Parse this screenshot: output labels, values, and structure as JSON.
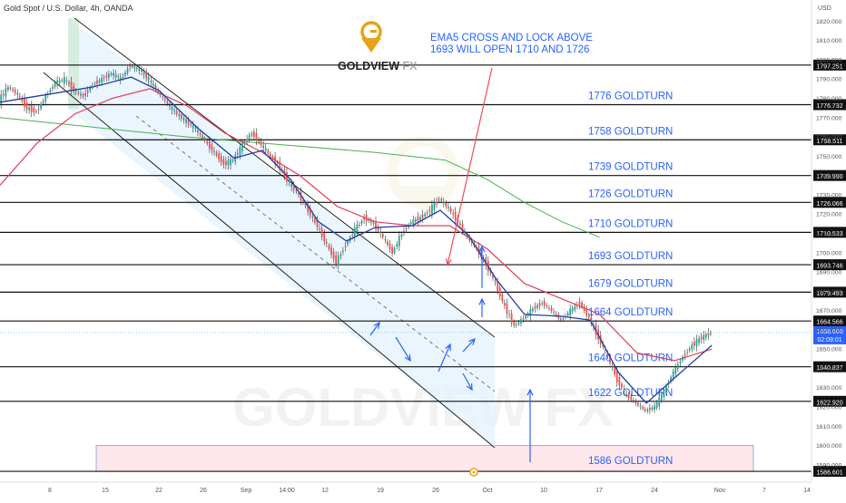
{
  "header": {
    "symbol": "Gold Spot / U.S. Dollar, 4h, OANDA",
    "currency": "USD"
  },
  "logo": {
    "text_main": "GOLDVIEW",
    "text_accent": "FX",
    "watermark": "GOLDVIEW FX"
  },
  "annotation": {
    "line1": "EMA5 CROSS AND LOCK ABOVE",
    "line2": "1693 WILL OPEN 1710 AND 1726"
  },
  "colors": {
    "bull": "#26a69a",
    "bear": "#ef5350",
    "ema_fast": "#1e3ea8",
    "ema_mid": "#e0405a",
    "ema_slow": "#4caf50",
    "label_blue": "#2962ff",
    "arrow_red": "#ef4b5a",
    "channel_fill": "#e3f2fd",
    "demand_zone": "#fde7ea"
  },
  "chart_data": {
    "type": "candlestick",
    "instrument": "Gold Spot / U.S. Dollar",
    "timeframe": "4h",
    "source": "OANDA",
    "ylim": [
      1581,
      1831
    ],
    "y_ticks": [
      1590,
      1600,
      1610,
      1620,
      1630,
      1640,
      1650,
      1660,
      1670,
      1680,
      1690,
      1700,
      1710,
      1720,
      1730,
      1740,
      1750,
      1760,
      1770,
      1780,
      1790,
      1800,
      1810,
      1820
    ],
    "x_ticks": [
      "8",
      "15",
      "22",
      "26",
      "Sep",
      "14:00",
      "12",
      "19",
      "26",
      "Oct",
      "10",
      "17",
      "24",
      "Nov",
      "7",
      "14"
    ],
    "levels": [
      {
        "price": 1797.251,
        "label": "1797.251"
      },
      {
        "price": 1776.732,
        "label": "1776.732",
        "goldturn": "1776 GOLDTURN"
      },
      {
        "price": 1758.511,
        "label": "1758.511",
        "goldturn": "1758 GOLDTURN"
      },
      {
        "price": 1739.99,
        "label": "1739.990",
        "goldturn": "1739 GOLDTURN"
      },
      {
        "price": 1726.066,
        "label": "1726.066",
        "goldturn": "1726 GOLDTURN"
      },
      {
        "price": 1710.533,
        "label": "1710.533",
        "goldturn": "1710 GOLDTURN"
      },
      {
        "price": 1693.746,
        "label": "1693.746",
        "goldturn": "1693 GOLDTURN"
      },
      {
        "price": 1679.493,
        "label": "1679.493",
        "goldturn": "1679 GOLDTURN"
      },
      {
        "price": 1664.566,
        "label": "1664.566",
        "goldturn": "1664 GOLDTURN"
      },
      {
        "price": 1640.837,
        "label": "1640.837",
        "goldturn": "1640 GOLDTURN"
      },
      {
        "price": 1622.92,
        "label": "1622.920",
        "goldturn": "1622 GOLDTURN"
      },
      {
        "price": 1586.601,
        "label": "1586.601",
        "goldturn": "1586 GOLDTURN"
      }
    ],
    "current_price": {
      "price": 1658.6,
      "label": "1658.600",
      "countdown": "02:09:01"
    },
    "demand_zone": {
      "low": 1586.601,
      "high": 1600
    },
    "price_path": [
      [
        0,
        1779
      ],
      [
        4,
        1786
      ],
      [
        8,
        1782
      ],
      [
        12,
        1775
      ],
      [
        16,
        1773
      ],
      [
        20,
        1781
      ],
      [
        24,
        1788
      ],
      [
        28,
        1790
      ],
      [
        32,
        1784
      ],
      [
        36,
        1781
      ],
      [
        40,
        1787
      ],
      [
        44,
        1790
      ],
      [
        48,
        1793
      ],
      [
        52,
        1790
      ],
      [
        56,
        1797
      ],
      [
        60,
        1795
      ],
      [
        64,
        1790
      ],
      [
        68,
        1783
      ],
      [
        72,
        1777
      ],
      [
        76,
        1772
      ],
      [
        80,
        1768
      ],
      [
        84,
        1764
      ],
      [
        88,
        1758
      ],
      [
        92,
        1752
      ],
      [
        96,
        1746
      ],
      [
        100,
        1748
      ],
      [
        104,
        1756
      ],
      [
        108,
        1762
      ],
      [
        112,
        1756
      ],
      [
        116,
        1750
      ],
      [
        120,
        1744
      ],
      [
        124,
        1736
      ],
      [
        128,
        1730
      ],
      [
        132,
        1722
      ],
      [
        136,
        1714
      ],
      [
        140,
        1704
      ],
      [
        144,
        1695
      ],
      [
        148,
        1704
      ],
      [
        152,
        1712
      ],
      [
        156,
        1718
      ],
      [
        160,
        1715
      ],
      [
        164,
        1708
      ],
      [
        168,
        1700
      ],
      [
        172,
        1710
      ],
      [
        176,
        1716
      ],
      [
        180,
        1718
      ],
      [
        184,
        1722
      ],
      [
        188,
        1728
      ],
      [
        192,
        1723
      ],
      [
        196,
        1716
      ],
      [
        200,
        1708
      ],
      [
        204,
        1702
      ],
      [
        208,
        1694
      ],
      [
        212,
        1684
      ],
      [
        216,
        1672
      ],
      [
        220,
        1662
      ],
      [
        224,
        1666
      ],
      [
        228,
        1671
      ],
      [
        232,
        1674
      ],
      [
        236,
        1670
      ],
      [
        240,
        1665
      ],
      [
        244,
        1670
      ],
      [
        248,
        1674
      ],
      [
        252,
        1666
      ],
      [
        256,
        1656
      ],
      [
        260,
        1646
      ],
      [
        264,
        1634
      ],
      [
        268,
        1626
      ],
      [
        272,
        1622
      ],
      [
        276,
        1618
      ],
      [
        280,
        1620
      ],
      [
        284,
        1628
      ],
      [
        288,
        1638
      ],
      [
        292,
        1646
      ],
      [
        296,
        1652
      ],
      [
        300,
        1656
      ],
      [
        304,
        1658.6
      ]
    ],
    "ema_fast": [
      [
        0,
        1778
      ],
      [
        20,
        1782
      ],
      [
        40,
        1786
      ],
      [
        56,
        1791
      ],
      [
        68,
        1784
      ],
      [
        84,
        1765
      ],
      [
        100,
        1749
      ],
      [
        112,
        1753
      ],
      [
        124,
        1738
      ],
      [
        136,
        1716
      ],
      [
        148,
        1706
      ],
      [
        160,
        1713
      ],
      [
        176,
        1714
      ],
      [
        188,
        1722
      ],
      [
        200,
        1709
      ],
      [
        212,
        1686
      ],
      [
        224,
        1668
      ],
      [
        240,
        1667
      ],
      [
        252,
        1665
      ],
      [
        264,
        1638
      ],
      [
        276,
        1622
      ],
      [
        288,
        1635
      ],
      [
        304,
        1652
      ]
    ],
    "ema_mid": [
      [
        0,
        1735
      ],
      [
        16,
        1757
      ],
      [
        32,
        1772
      ],
      [
        48,
        1780
      ],
      [
        64,
        1785
      ],
      [
        80,
        1776
      ],
      [
        96,
        1762
      ],
      [
        112,
        1752
      ],
      [
        128,
        1740
      ],
      [
        144,
        1724
      ],
      [
        160,
        1716
      ],
      [
        176,
        1714
      ],
      [
        192,
        1714
      ],
      [
        208,
        1702
      ],
      [
        224,
        1684
      ],
      [
        240,
        1676
      ],
      [
        256,
        1668
      ],
      [
        272,
        1648
      ],
      [
        288,
        1644
      ],
      [
        304,
        1650
      ]
    ],
    "ema_slow": [
      [
        0,
        1770
      ],
      [
        40,
        1765
      ],
      [
        80,
        1760
      ],
      [
        120,
        1756
      ],
      [
        160,
        1752
      ],
      [
        190,
        1748
      ],
      [
        208,
        1738
      ],
      [
        224,
        1726
      ],
      [
        240,
        1716
      ],
      [
        256,
        1708
      ]
    ]
  }
}
